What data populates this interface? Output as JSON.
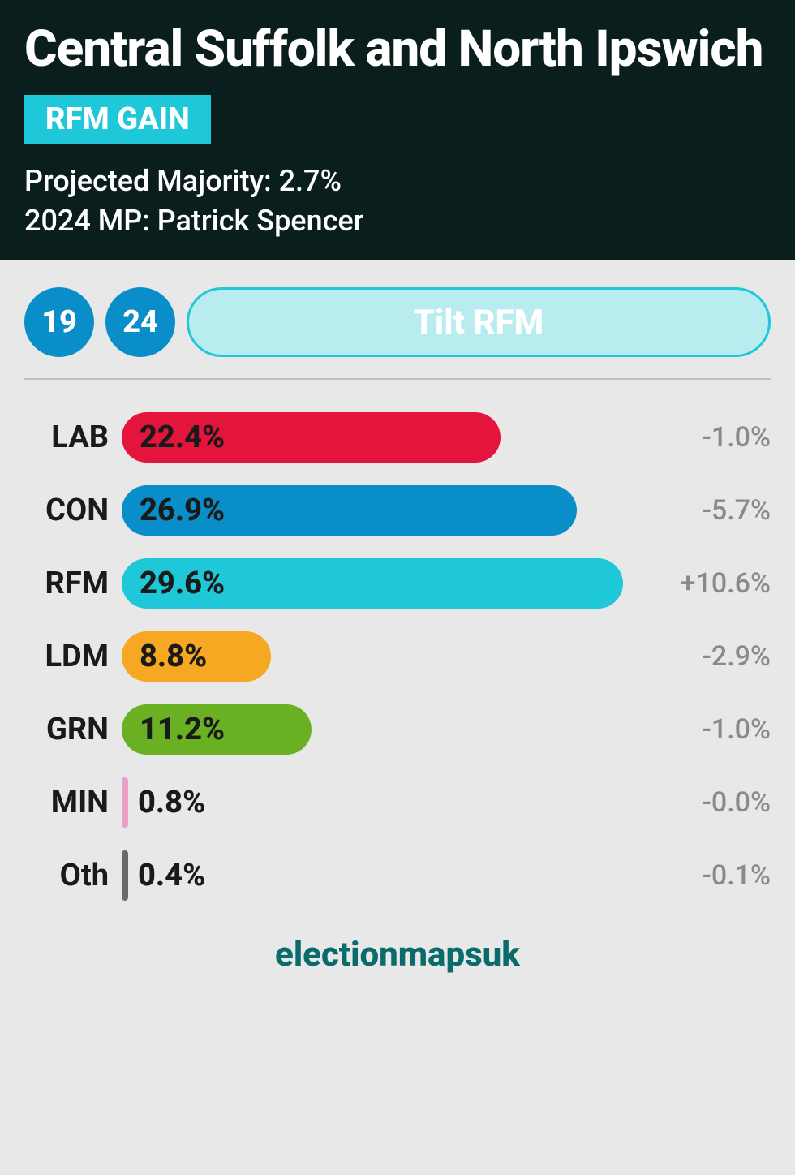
{
  "header": {
    "title": "Central Suffolk and North Ipswich",
    "gain_label": "RFM GAIN",
    "gain_bg": "#1ec8d8",
    "majority_label": "Projected Majority: 2.7%",
    "mp_label": "2024 MP: Patrick Spencer",
    "bg": "#0a1e1e"
  },
  "tabs": {
    "year1": "19",
    "year1_bg": "#0a8ec9",
    "year2": "24",
    "year2_bg": "#0a8ec9",
    "tilt_label": "Tilt RFM",
    "tilt_bg": "#b8ecef",
    "tilt_border": "#1ec8d8",
    "tilt_text": "#ffffff"
  },
  "chart": {
    "max_pct": 29.6,
    "bar_scale_pct": 95,
    "rows": [
      {
        "party": "LAB",
        "value": 22.4,
        "value_label": "22.4%",
        "change": "-1.0%",
        "color": "#e4143c",
        "label_inside": true
      },
      {
        "party": "CON",
        "value": 26.9,
        "value_label": "26.9%",
        "change": "-5.7%",
        "color": "#0a8ec9",
        "label_inside": true
      },
      {
        "party": "RFM",
        "value": 29.6,
        "value_label": "29.6%",
        "change": "+10.6%",
        "color": "#1ec8d8",
        "label_inside": true
      },
      {
        "party": "LDM",
        "value": 8.8,
        "value_label": "8.8%",
        "change": "-2.9%",
        "color": "#f7a823",
        "label_inside": true
      },
      {
        "party": "GRN",
        "value": 11.2,
        "value_label": "11.2%",
        "change": "-1.0%",
        "color": "#6ab023",
        "label_inside": true
      },
      {
        "party": "MIN",
        "value": 0.8,
        "value_label": "0.8%",
        "change": "-0.0%",
        "color": "#e8a0c8",
        "label_inside": false
      },
      {
        "party": "Oth",
        "value": 0.4,
        "value_label": "0.4%",
        "change": "-0.1%",
        "color": "#6a6a6a",
        "label_inside": false
      }
    ]
  },
  "footer": {
    "text": "electionmapsuk",
    "color": "#0a6b6b"
  }
}
